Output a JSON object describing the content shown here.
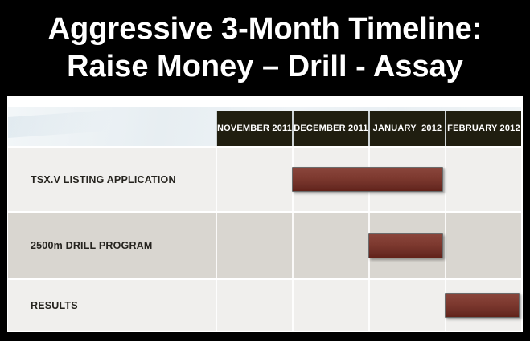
{
  "title": {
    "line1": "Aggressive 3-Month Timeline:",
    "line2": "Raise Money – Drill - Assay"
  },
  "gantt": {
    "columns": [
      "NOVEMBER 2011",
      "DECEMBER 2011",
      "JANUARY  2012",
      "FEBRUARY 2012"
    ],
    "rows": [
      {
        "label": "TSX.V LISTING APPLICATION",
        "bar": {
          "start_col": 1,
          "span": 2
        }
      },
      {
        "label": "2500m DRILL PROGRAM",
        "bar": {
          "start_col": 2,
          "span": 1
        }
      },
      {
        "label": "RESULTS",
        "bar": {
          "start_col": 3,
          "span": 1
        }
      }
    ]
  },
  "chart_data": {
    "type": "bar",
    "subtype": "gantt-timeline",
    "title": "Aggressive 3-Month Timeline: Raise Money – Drill - Assay",
    "categories": [
      "TSX.V LISTING APPLICATION",
      "2500m DRILL PROGRAM",
      "RESULTS"
    ],
    "x_labels": [
      "NOVEMBER 2011",
      "DECEMBER 2011",
      "JANUARY 2012",
      "FEBRUARY 2012"
    ],
    "series": [
      {
        "name": "TSX.V LISTING APPLICATION",
        "start": "DECEMBER 2011",
        "end": "JANUARY 2012"
      },
      {
        "name": "2500m DRILL PROGRAM",
        "start": "JANUARY 2012",
        "end": "JANUARY 2012"
      },
      {
        "name": "RESULTS",
        "start": "FEBRUARY 2012",
        "end": "FEBRUARY 2012"
      }
    ],
    "legend": "none",
    "grid": "on",
    "bar_color": "#7a372e"
  },
  "colors": {
    "frame": "#000000",
    "title_text": "#ffffff",
    "header_cell": "#201e10",
    "row_light": "#f0efed",
    "row_dark": "#d9d6d0",
    "label_text": "#26241f",
    "bar": "#7a372e"
  }
}
